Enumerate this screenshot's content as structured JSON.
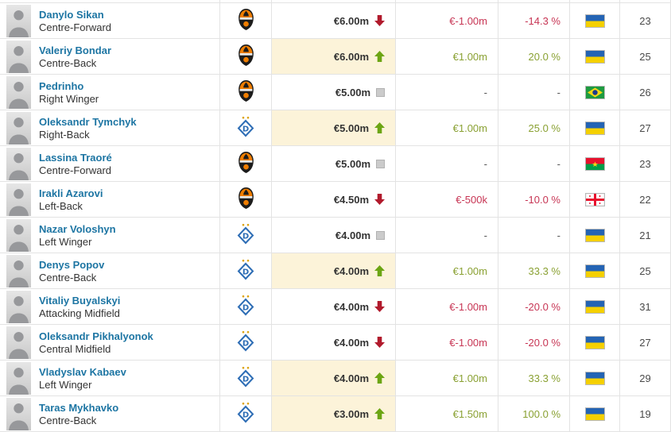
{
  "table": {
    "columns": [
      "player",
      "club",
      "market_value",
      "change",
      "percent",
      "nationality",
      "age"
    ],
    "colors": {
      "link_blue": "#1d75a3",
      "positive_text": "#8aa133",
      "negative_text": "#c73554",
      "arrow_up_green": "#6ca513",
      "arrow_down_red": "#b11a2c",
      "neutral_gray": "#cbcbcb",
      "highlight_row_value": "#fcf3d9",
      "grid_border": "#e3e3e3"
    },
    "rows": [
      {
        "name": "Danylo Sikan",
        "position": "Centre-Forward",
        "club": "shakhtar-donetsk",
        "value": "€6.00m",
        "trend": "down",
        "highlight": false,
        "change": "€-1.00m",
        "change_dir": "neg",
        "percent": "-14.3 %",
        "percent_dir": "neg",
        "nationality": "ukraine",
        "age": "23"
      },
      {
        "name": "Valeriy Bondar",
        "position": "Centre-Back",
        "club": "shakhtar-donetsk",
        "value": "€6.00m",
        "trend": "up",
        "highlight": true,
        "change": "€1.00m",
        "change_dir": "pos",
        "percent": "20.0 %",
        "percent_dir": "pos",
        "nationality": "ukraine",
        "age": "25"
      },
      {
        "name": "Pedrinho",
        "position": "Right Winger",
        "club": "shakhtar-donetsk",
        "value": "€5.00m",
        "trend": "neutral",
        "highlight": false,
        "change": "-",
        "change_dir": "mut",
        "percent": "-",
        "percent_dir": "mut",
        "nationality": "brazil",
        "age": "26"
      },
      {
        "name": "Oleksandr Tymchyk",
        "position": "Right-Back",
        "club": "dynamo-kyiv",
        "value": "€5.00m",
        "trend": "up",
        "highlight": true,
        "change": "€1.00m",
        "change_dir": "pos",
        "percent": "25.0 %",
        "percent_dir": "pos",
        "nationality": "ukraine",
        "age": "27"
      },
      {
        "name": "Lassina Traoré",
        "position": "Centre-Forward",
        "club": "shakhtar-donetsk",
        "value": "€5.00m",
        "trend": "neutral",
        "highlight": false,
        "change": "-",
        "change_dir": "mut",
        "percent": "-",
        "percent_dir": "mut",
        "nationality": "burkina-faso",
        "age": "23"
      },
      {
        "name": "Irakli Azarovi",
        "position": "Left-Back",
        "club": "shakhtar-donetsk",
        "value": "€4.50m",
        "trend": "down",
        "highlight": false,
        "change": "€-500k",
        "change_dir": "neg",
        "percent": "-10.0 %",
        "percent_dir": "neg",
        "nationality": "georgia",
        "age": "22"
      },
      {
        "name": "Nazar Voloshyn",
        "position": "Left Winger",
        "club": "dynamo-kyiv",
        "value": "€4.00m",
        "trend": "neutral",
        "highlight": false,
        "change": "-",
        "change_dir": "mut",
        "percent": "-",
        "percent_dir": "mut",
        "nationality": "ukraine",
        "age": "21"
      },
      {
        "name": "Denys Popov",
        "position": "Centre-Back",
        "club": "dynamo-kyiv",
        "value": "€4.00m",
        "trend": "up",
        "highlight": true,
        "change": "€1.00m",
        "change_dir": "pos",
        "percent": "33.3 %",
        "percent_dir": "pos",
        "nationality": "ukraine",
        "age": "25"
      },
      {
        "name": "Vitaliy Buyalskyi",
        "position": "Attacking Midfield",
        "club": "dynamo-kyiv",
        "value": "€4.00m",
        "trend": "down",
        "highlight": false,
        "change": "€-1.00m",
        "change_dir": "neg",
        "percent": "-20.0 %",
        "percent_dir": "neg",
        "nationality": "ukraine",
        "age": "31"
      },
      {
        "name": "Oleksandr Pikhalyonok",
        "position": "Central Midfield",
        "club": "dynamo-kyiv",
        "value": "€4.00m",
        "trend": "down",
        "highlight": false,
        "change": "€-1.00m",
        "change_dir": "neg",
        "percent": "-20.0 %",
        "percent_dir": "neg",
        "nationality": "ukraine",
        "age": "27"
      },
      {
        "name": "Vladyslav Kabaev",
        "position": "Left Winger",
        "club": "dynamo-kyiv",
        "value": "€4.00m",
        "trend": "up",
        "highlight": true,
        "change": "€1.00m",
        "change_dir": "pos",
        "percent": "33.3 %",
        "percent_dir": "pos",
        "nationality": "ukraine",
        "age": "29"
      },
      {
        "name": "Taras Mykhavko",
        "position": "Centre-Back",
        "club": "dynamo-kyiv",
        "value": "€3.00m",
        "trend": "up",
        "highlight": true,
        "change": "€1.50m",
        "change_dir": "pos",
        "percent": "100.0 %",
        "percent_dir": "pos",
        "nationality": "ukraine",
        "age": "19"
      }
    ]
  }
}
